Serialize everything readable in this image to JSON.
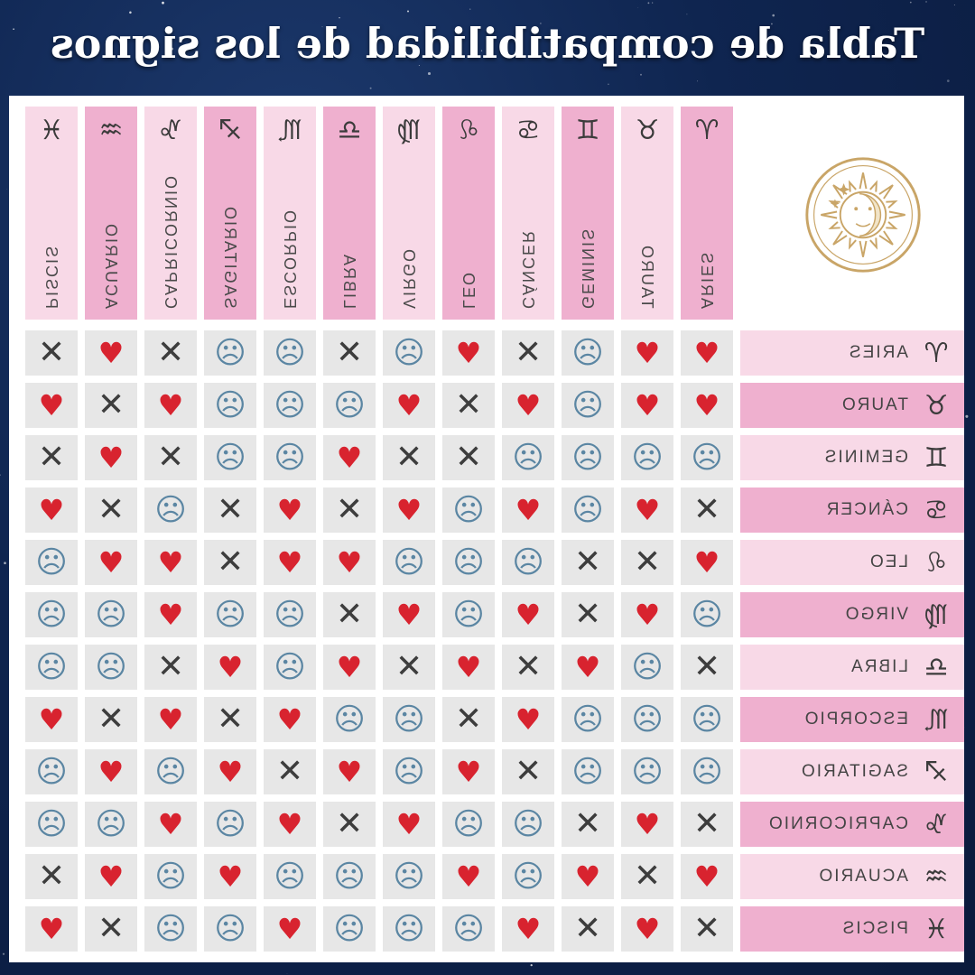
{
  "title": "Tabla de compatibilidad de los signos",
  "signs": [
    {
      "key": "aries",
      "name": "ARIES",
      "symbol": "♈︎"
    },
    {
      "key": "tauro",
      "name": "TAURO",
      "symbol": "♉︎"
    },
    {
      "key": "geminis",
      "name": "GEMINIS",
      "symbol": "♊︎"
    },
    {
      "key": "cancer",
      "name": "CÁNCER",
      "symbol": "♋︎"
    },
    {
      "key": "leo",
      "name": "LEO",
      "symbol": "♌︎"
    },
    {
      "key": "virgo",
      "name": "VIRGO",
      "symbol": "♍︎"
    },
    {
      "key": "libra",
      "name": "LIBRA",
      "symbol": "♎︎"
    },
    {
      "key": "escorpio",
      "name": "ESCORPIO",
      "symbol": "♏︎"
    },
    {
      "key": "sagitario",
      "name": "SAGITARIO",
      "symbol": "♐︎"
    },
    {
      "key": "capricornio",
      "name": "CAPRICORNIO",
      "symbol": "♑︎"
    },
    {
      "key": "acuario",
      "name": "ACUARIO",
      "symbol": "♒︎"
    },
    {
      "key": "piscis",
      "name": "PISCIS",
      "symbol": "♓︎"
    }
  ],
  "legend_symbols": {
    "H": "heart-icon",
    "X": "x-icon",
    "N": "neutral-face-icon"
  },
  "glyphs": {
    "H": "♥",
    "X": "✕",
    "N": "☹"
  },
  "colors": {
    "heart": "#d8232f",
    "x": "#3d3d3d",
    "neutral": "#5b86a3",
    "pink_dark": "#efb0cf",
    "pink_light": "#f8d9e7",
    "cell": "#e7e7e7",
    "logo": "#c9a567"
  },
  "matrix": [
    [
      "H",
      "H",
      "N",
      "X",
      "H",
      "N",
      "X",
      "N",
      "N",
      "X",
      "H",
      "X"
    ],
    [
      "H",
      "H",
      "N",
      "H",
      "X",
      "H",
      "N",
      "N",
      "N",
      "H",
      "X",
      "H"
    ],
    [
      "N",
      "N",
      "N",
      "N",
      "X",
      "X",
      "H",
      "N",
      "N",
      "X",
      "H",
      "X"
    ],
    [
      "X",
      "H",
      "N",
      "H",
      "N",
      "H",
      "X",
      "H",
      "X",
      "N",
      "X",
      "H"
    ],
    [
      "H",
      "X",
      "X",
      "N",
      "N",
      "N",
      "H",
      "H",
      "X",
      "H",
      "H",
      "N"
    ],
    [
      "N",
      "H",
      "X",
      "H",
      "N",
      "H",
      "X",
      "N",
      "N",
      "H",
      "N",
      "N"
    ],
    [
      "X",
      "N",
      "H",
      "X",
      "H",
      "X",
      "H",
      "N",
      "H",
      "X",
      "N",
      "N"
    ],
    [
      "N",
      "N",
      "N",
      "H",
      "X",
      "N",
      "N",
      "H",
      "X",
      "H",
      "X",
      "H"
    ],
    [
      "N",
      "N",
      "N",
      "X",
      "H",
      "N",
      "H",
      "X",
      "H",
      "N",
      "H",
      "N"
    ],
    [
      "X",
      "H",
      "X",
      "N",
      "N",
      "H",
      "X",
      "H",
      "N",
      "H",
      "N",
      "N"
    ],
    [
      "H",
      "X",
      "H",
      "N",
      "H",
      "N",
      "N",
      "N",
      "H",
      "N",
      "H",
      "X"
    ],
    [
      "X",
      "H",
      "X",
      "H",
      "N",
      "N",
      "N",
      "H",
      "N",
      "N",
      "X",
      "H"
    ]
  ]
}
